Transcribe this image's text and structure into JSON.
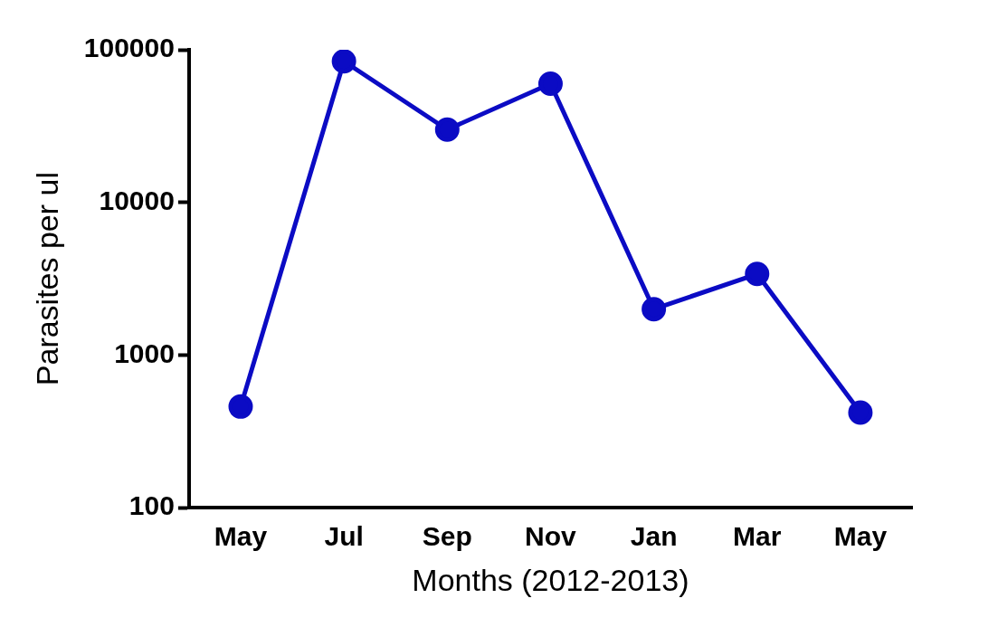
{
  "chart_data": {
    "type": "line",
    "xlabel": "Months (2012-2013)",
    "ylabel": "Parasites per ul",
    "categories": [
      "May",
      "Jul",
      "Sep",
      "Nov",
      "Jan",
      "Mar",
      "May"
    ],
    "series": [
      {
        "color": "#0b0bc4",
        "values": [
          460,
          84000,
          30000,
          60000,
          2000,
          3400,
          420
        ]
      }
    ],
    "log": "y",
    "ylim": [
      100,
      100000
    ],
    "yticks": [
      100,
      1000,
      10000,
      100000
    ],
    "grid": false,
    "legend": false,
    "marker": "circle",
    "line_style": "solid"
  }
}
